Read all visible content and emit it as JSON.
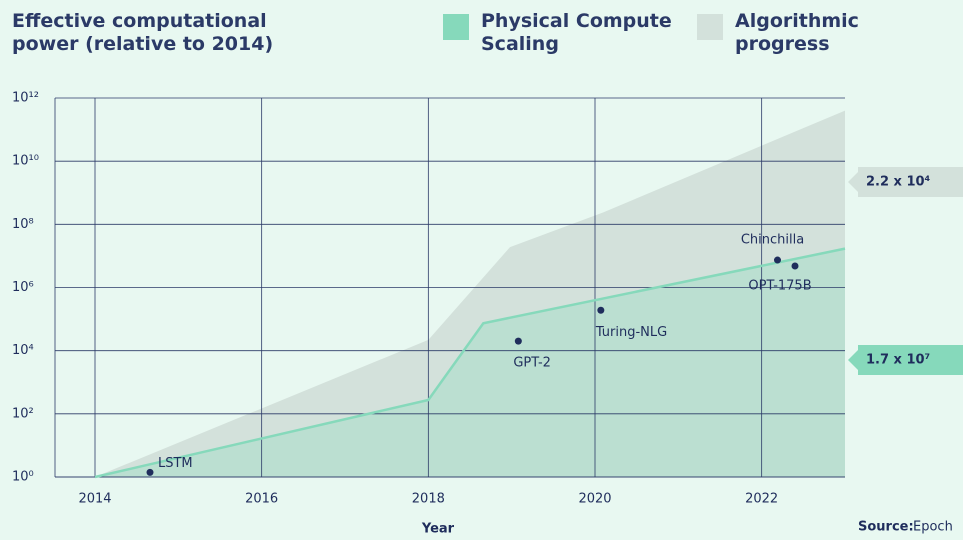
{
  "chart_data": {
    "type": "area",
    "title": "Effective computational power (relative to 2014)",
    "xlabel": "Year",
    "log_y": true,
    "grid": true,
    "xlim": [
      2013.52,
      2023
    ],
    "xticks": [
      2014,
      2016,
      2018,
      2020,
      2022
    ],
    "ylim": [
      1,
      1000000000000
    ],
    "yticks": [
      {
        "value": 1,
        "label": "10⁰"
      },
      {
        "value": 100,
        "label": "10²"
      },
      {
        "value": 10000,
        "label": "10⁴"
      },
      {
        "value": 1000000,
        "label": "10⁶"
      },
      {
        "value": 100000000,
        "label": "10⁸"
      },
      {
        "value": 10000000000,
        "label": "10¹⁰"
      },
      {
        "value": 1000000000000,
        "label": "10¹²"
      }
    ],
    "series": [
      {
        "name": "Physical Compute Scaling",
        "color": "#86d9bb",
        "x": [
          2014,
          2018,
          2018.66,
          2023
        ],
        "values": [
          1,
          275,
          74000,
          17000000
        ]
      },
      {
        "name": "Algorithmic progress",
        "color": "#d3e1db",
        "x": [
          2014,
          2018,
          2018.98,
          2020.1,
          2023
        ],
        "values": [
          1,
          22000,
          19000000,
          240000000,
          400000000000
        ]
      }
    ],
    "points": {
      "color": "#1f2d5c",
      "labels": [
        "LSTM",
        "GPT-2",
        "Turing-NLG",
        "Chinchilla",
        "OPT-175B"
      ],
      "x": [
        2014.66,
        2019.08,
        2020.07,
        2022.19,
        2022.4
      ],
      "values": [
        1.4,
        20000,
        190000,
        7400000,
        4800000
      ]
    },
    "annotations": [
      "2.2 x 10⁴",
      "1.7 x 10⁷"
    ],
    "source_label": "Source:",
    "source": "Epoch"
  }
}
